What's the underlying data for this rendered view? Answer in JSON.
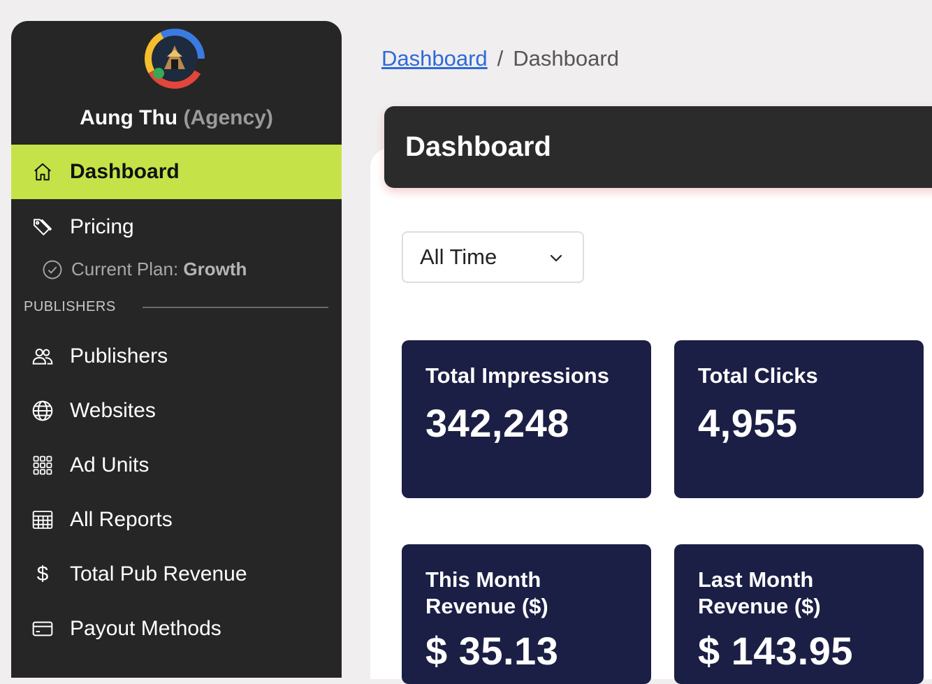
{
  "user": {
    "name": "Aung Thu",
    "role": "(Agency)"
  },
  "sidebar": {
    "items": [
      {
        "label": "Dashboard",
        "icon": "home-icon",
        "active": true
      },
      {
        "label": "Pricing",
        "icon": "tag-icon"
      },
      {
        "label": "Publishers",
        "icon": "users-icon"
      },
      {
        "label": "Websites",
        "icon": "globe-icon"
      },
      {
        "label": "Ad Units",
        "icon": "grid-icon"
      },
      {
        "label": "All Reports",
        "icon": "table-icon"
      },
      {
        "label": "Total Pub Revenue",
        "icon": "dollar-icon"
      },
      {
        "label": "Payout Methods",
        "icon": "credit-card-icon"
      }
    ],
    "plan": {
      "prefix": "Current Plan:",
      "name": "Growth",
      "icon": "check-circle-icon"
    },
    "section_publishers": "PUBLISHERS"
  },
  "breadcrumb": {
    "link": "Dashboard",
    "separator": "/",
    "current": "Dashboard"
  },
  "header": {
    "title": "Dashboard"
  },
  "filter": {
    "selected": "All Time"
  },
  "stats": [
    {
      "label": "Total Impressions",
      "value": "342,248"
    },
    {
      "label": "Total Clicks",
      "value": "4,955"
    },
    {
      "label_line1": "This Month",
      "label_line2": "Revenue ($)",
      "value": "$ 35.13"
    },
    {
      "label_line1": "Last Month",
      "label_line2": "Revenue ($)",
      "value": "$ 143.95"
    }
  ],
  "colors": {
    "sidebar_bg": "#262626",
    "active_item": "#c5e349",
    "card_bg": "#1b1f45",
    "link": "#2d6ad9"
  }
}
